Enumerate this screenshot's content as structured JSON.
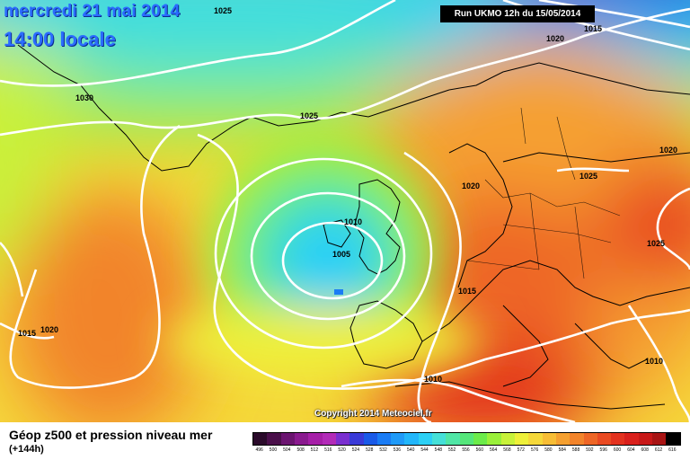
{
  "header": {
    "date": "mercredi 21 mai 2014",
    "time": "14:00 locale",
    "run": "Run UKMO 12h du 15/05/2014"
  },
  "copyright": "Copyright 2014 Meteociel.fr",
  "isobar_labels": [
    "1025",
    "1015",
    "1020",
    "1030",
    "1025",
    "1020",
    "1025",
    "1020",
    "1010",
    "1005",
    "1025",
    "1015",
    "1020",
    "1015",
    "1010",
    "1010"
  ],
  "footer": {
    "title": "Géop z500 et pression niveau mer",
    "subtitle": "(+144h)"
  },
  "legend": {
    "values": [
      "496",
      "500",
      "504",
      "508",
      "512",
      "516",
      "520",
      "524",
      "528",
      "532",
      "536",
      "540",
      "544",
      "548",
      "552",
      "556",
      "560",
      "564",
      "568",
      "572",
      "576",
      "580",
      "584",
      "588",
      "592",
      "596",
      "600",
      "604",
      "608",
      "612",
      "616"
    ],
    "colors": [
      "#2a0a2a",
      "#4a0f4a",
      "#6b1470",
      "#8a1a8f",
      "#a61fa8",
      "#b22bb8",
      "#7a2fd0",
      "#3a3ad8",
      "#1a5ae8",
      "#1a7cf5",
      "#1f9af8",
      "#22b6fa",
      "#2cd0f5",
      "#45e0d8",
      "#50e6a6",
      "#55e67a",
      "#6ceb4a",
      "#9af03a",
      "#c8f23a",
      "#eef03a",
      "#f5d83a",
      "#f7bd35",
      "#f5a030",
      "#f2842b",
      "#ee6626",
      "#e94a22",
      "#e3321f",
      "#d9201c",
      "#c81818",
      "#a81414",
      "#000000"
    ]
  }
}
